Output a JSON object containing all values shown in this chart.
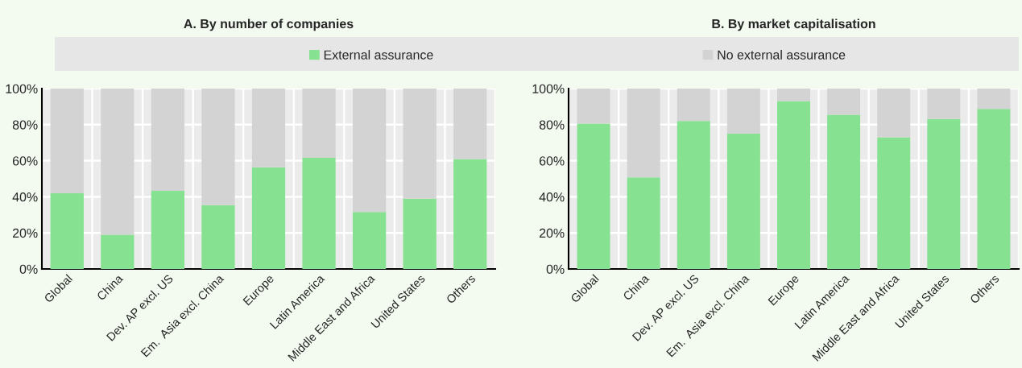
{
  "chart_data": [
    {
      "type": "bar",
      "title": "A. By number of companies",
      "stacked": true,
      "legend": "top",
      "grid": true,
      "categories": [
        "Global",
        "China",
        "Dev. AP excl. US",
        "Em.  Asia excl. China",
        "Europe",
        "Latin America",
        "Middle East and Africa",
        "United States",
        "Others"
      ],
      "series": [
        {
          "name": "External assurance",
          "color": "#86e191",
          "values": [
            42.0,
            19.0,
            43.3,
            35.4,
            56.4,
            61.6,
            31.6,
            39.0,
            60.9
          ]
        },
        {
          "name": "No external assurance",
          "color": "#d3d3d3",
          "values": [
            58.0,
            81.0,
            56.7,
            64.6,
            43.6,
            38.4,
            68.4,
            61.0,
            39.1
          ]
        }
      ],
      "ylim": [
        0,
        100
      ],
      "yticks": [
        {
          "value": 0,
          "label": "0%"
        },
        {
          "value": 20,
          "label": "20%"
        },
        {
          "value": 40,
          "label": "40%"
        },
        {
          "value": 60,
          "label": "60%"
        },
        {
          "value": 80,
          "label": "80%"
        },
        {
          "value": 100,
          "label": "100%"
        }
      ]
    },
    {
      "type": "bar",
      "title": "B. By market capitalisation",
      "stacked": true,
      "grid": true,
      "categories": [
        "Global",
        "China",
        "Dev. AP excl. US",
        "Em.  Asia excl. China",
        "Europe",
        "Latin America",
        "Middle East and Africa",
        "United States",
        "Others"
      ],
      "series": [
        {
          "color": "#86e191",
          "values": [
            80.6,
            50.8,
            82.0,
            75.0,
            93.1,
            85.5,
            73.0,
            83.2,
            88.7
          ]
        },
        {
          "color": "#d3d3d3",
          "values": [
            19.4,
            49.2,
            18.0,
            25.0,
            6.9,
            14.5,
            27.0,
            16.8,
            11.3
          ]
        }
      ],
      "ylim": [
        0,
        100
      ],
      "yticks": [
        {
          "value": 0,
          "label": "0%"
        },
        {
          "value": 20,
          "label": "20%"
        },
        {
          "value": 40,
          "label": "40%"
        },
        {
          "value": 60,
          "label": "60%"
        },
        {
          "value": 80,
          "label": "80%"
        },
        {
          "value": 100,
          "label": "100%"
        }
      ]
    }
  ]
}
